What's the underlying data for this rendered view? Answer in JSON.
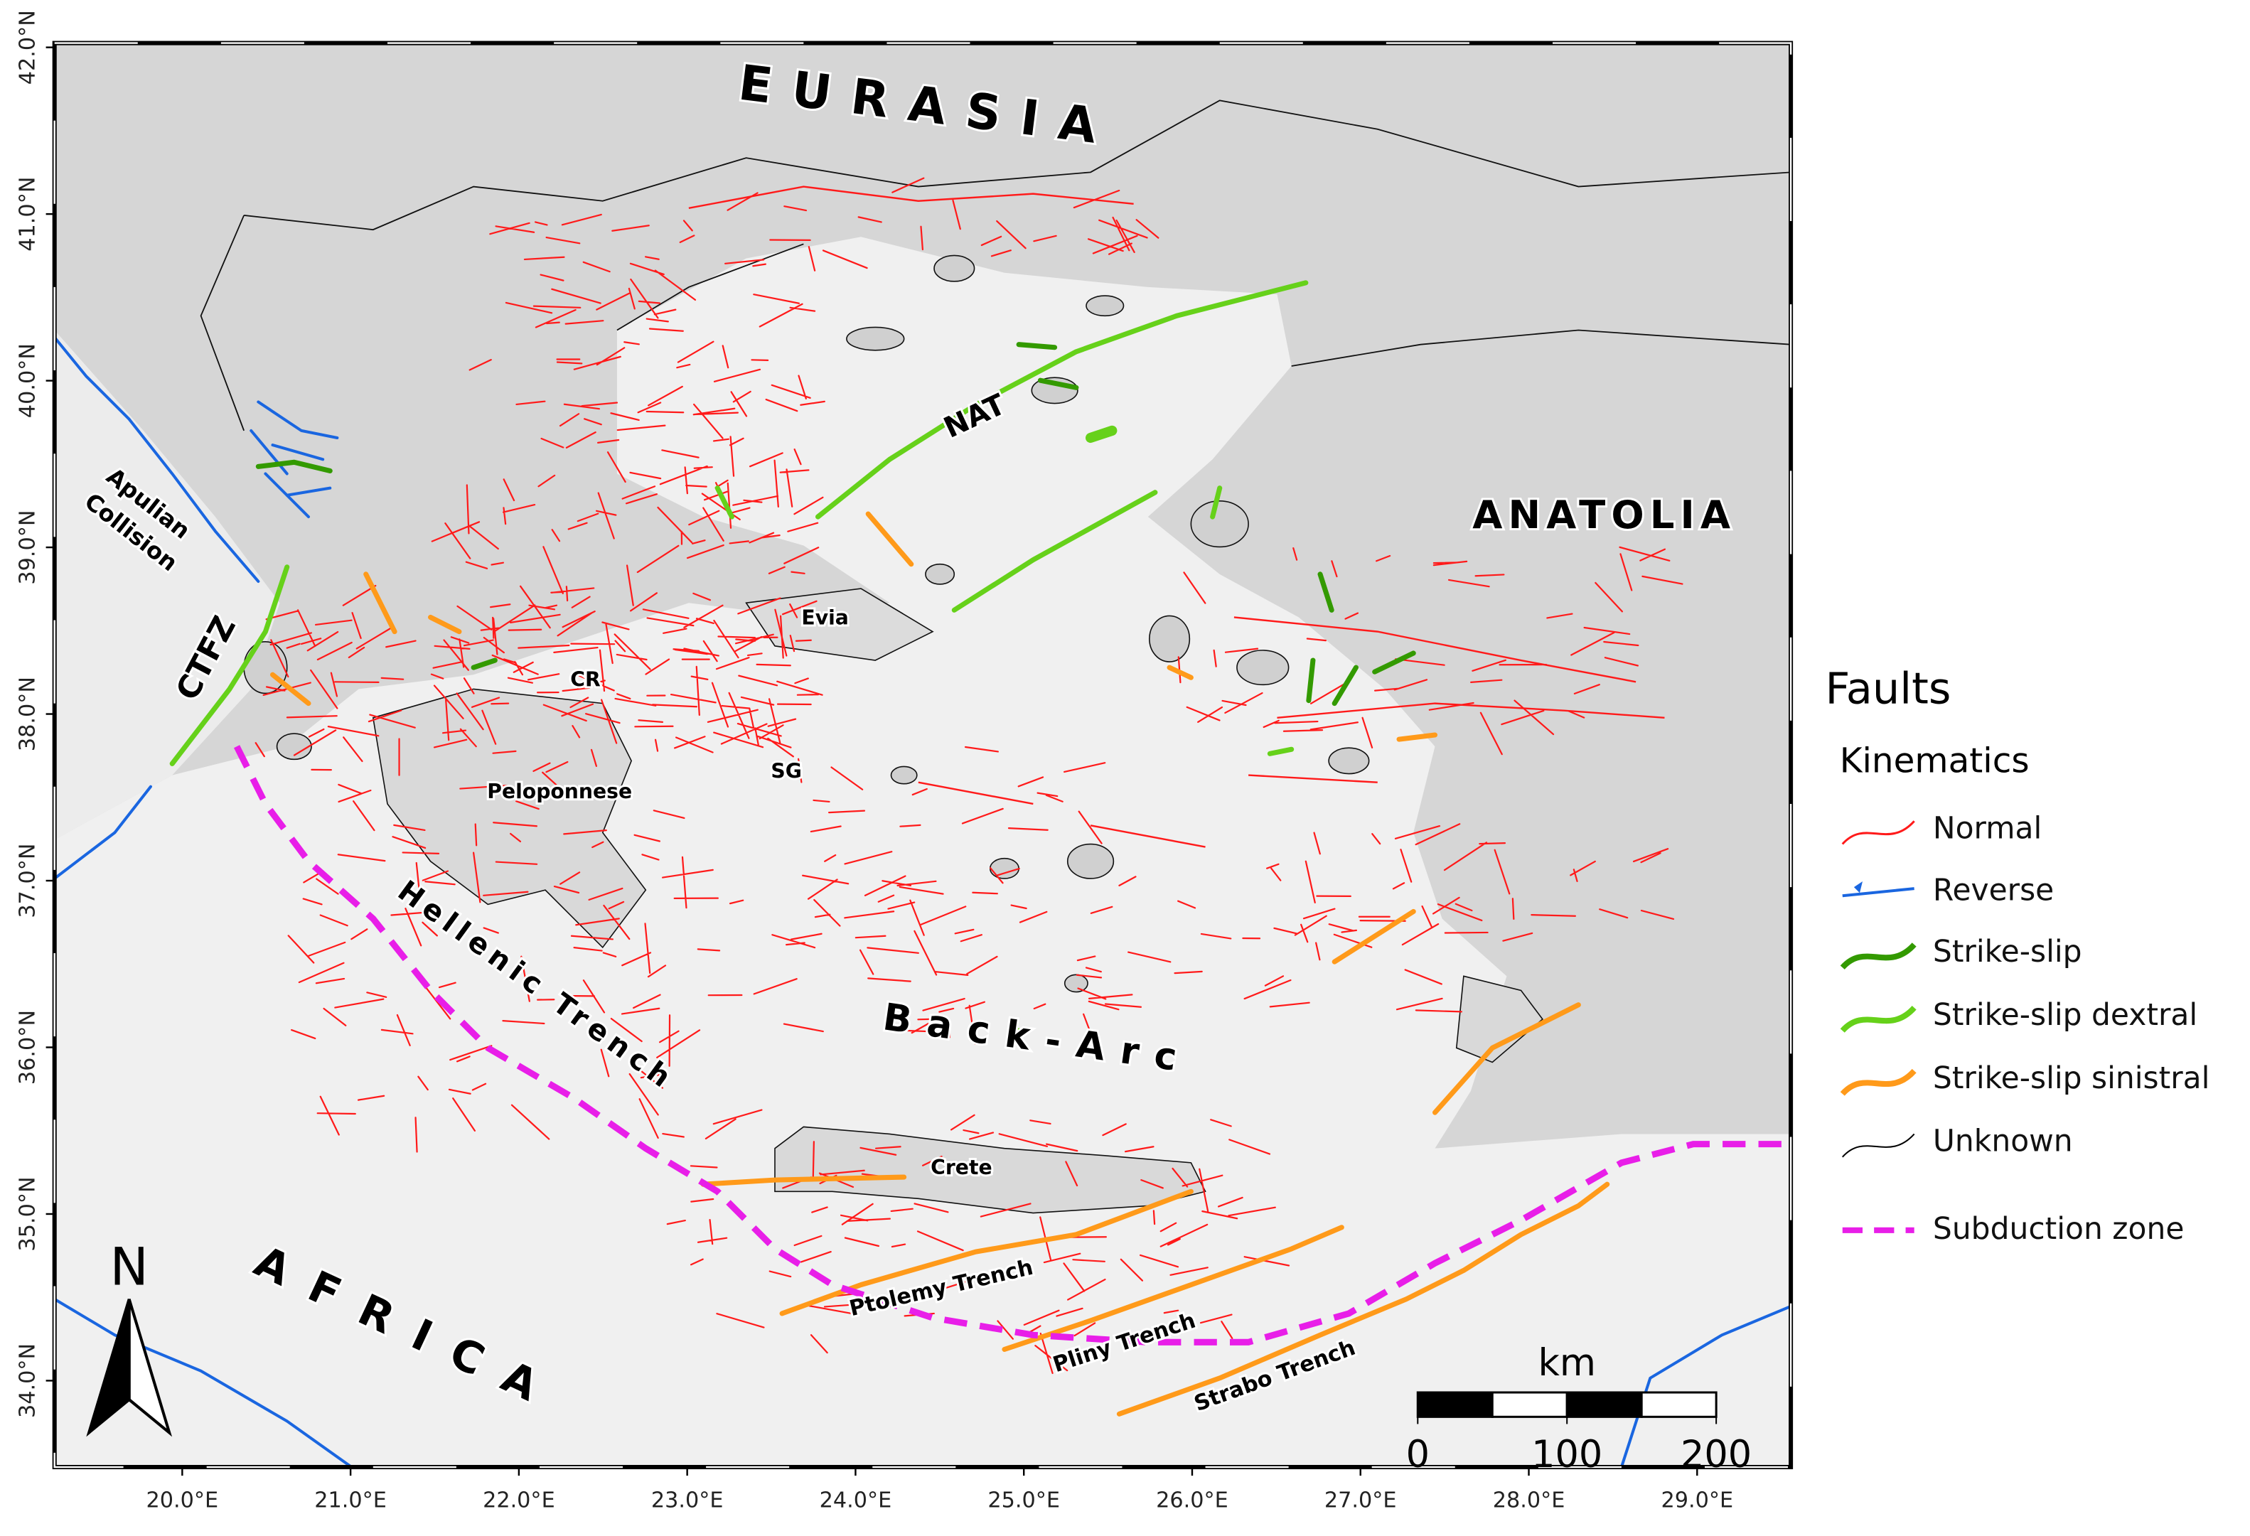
{
  "map": {
    "lon_ticks": [
      {
        "value": 20,
        "label": "20.0°E"
      },
      {
        "value": 21,
        "label": "21.0°E"
      },
      {
        "value": 22,
        "label": "22.0°E"
      },
      {
        "value": 23,
        "label": "23.0°E"
      },
      {
        "value": 24,
        "label": "24.0°E"
      },
      {
        "value": 25,
        "label": "25.0°E"
      },
      {
        "value": 26,
        "label": "26.0°E"
      },
      {
        "value": 27,
        "label": "27.0°E"
      },
      {
        "value": 28,
        "label": "28.0°E"
      },
      {
        "value": 29,
        "label": "29.0°E"
      }
    ],
    "lat_ticks": [
      {
        "value": 34,
        "label": "34.0°N"
      },
      {
        "value": 35,
        "label": "35.0°N"
      },
      {
        "value": 36,
        "label": "36.0°N"
      },
      {
        "value": 37,
        "label": "37.0°N"
      },
      {
        "value": 38,
        "label": "38.0°N"
      },
      {
        "value": 39,
        "label": "39.0°N"
      },
      {
        "value": 40,
        "label": "40.0°N"
      },
      {
        "value": 41,
        "label": "41.0°N"
      },
      {
        "value": 42,
        "label": "42.0°N"
      }
    ],
    "labels": {
      "eurasia": "EURASIA",
      "anatolia": "ANATOLIA",
      "africa": "AFRICA",
      "apulian_collision": [
        "Apulian",
        "Collision"
      ],
      "ctfz": "CTFZ",
      "nat": "NAT",
      "evia": "Evia",
      "cr": "CR",
      "sg": "SG",
      "peloponnese": "Peloponnese",
      "hellenic_trench": "Hellenic Trench",
      "back_arc": "Back-Arc",
      "crete": "Crete",
      "ptolemy_trench": "Ptolemy Trench",
      "pliny_trench": "Pliny Trench",
      "strabo_trench": "Strabo Trench"
    }
  },
  "legend": {
    "title": "Faults",
    "subtitle": "Kinematics",
    "items": [
      "Normal",
      "Reverse",
      "Strike-slip",
      "Strike-slip dextral",
      "Strike-slip sinistral",
      "Unknown"
    ],
    "subduction": "Subduction zone"
  },
  "scale_bar": {
    "unit": "km",
    "ticks": [
      0,
      100,
      200
    ]
  },
  "north_arrow": "N"
}
